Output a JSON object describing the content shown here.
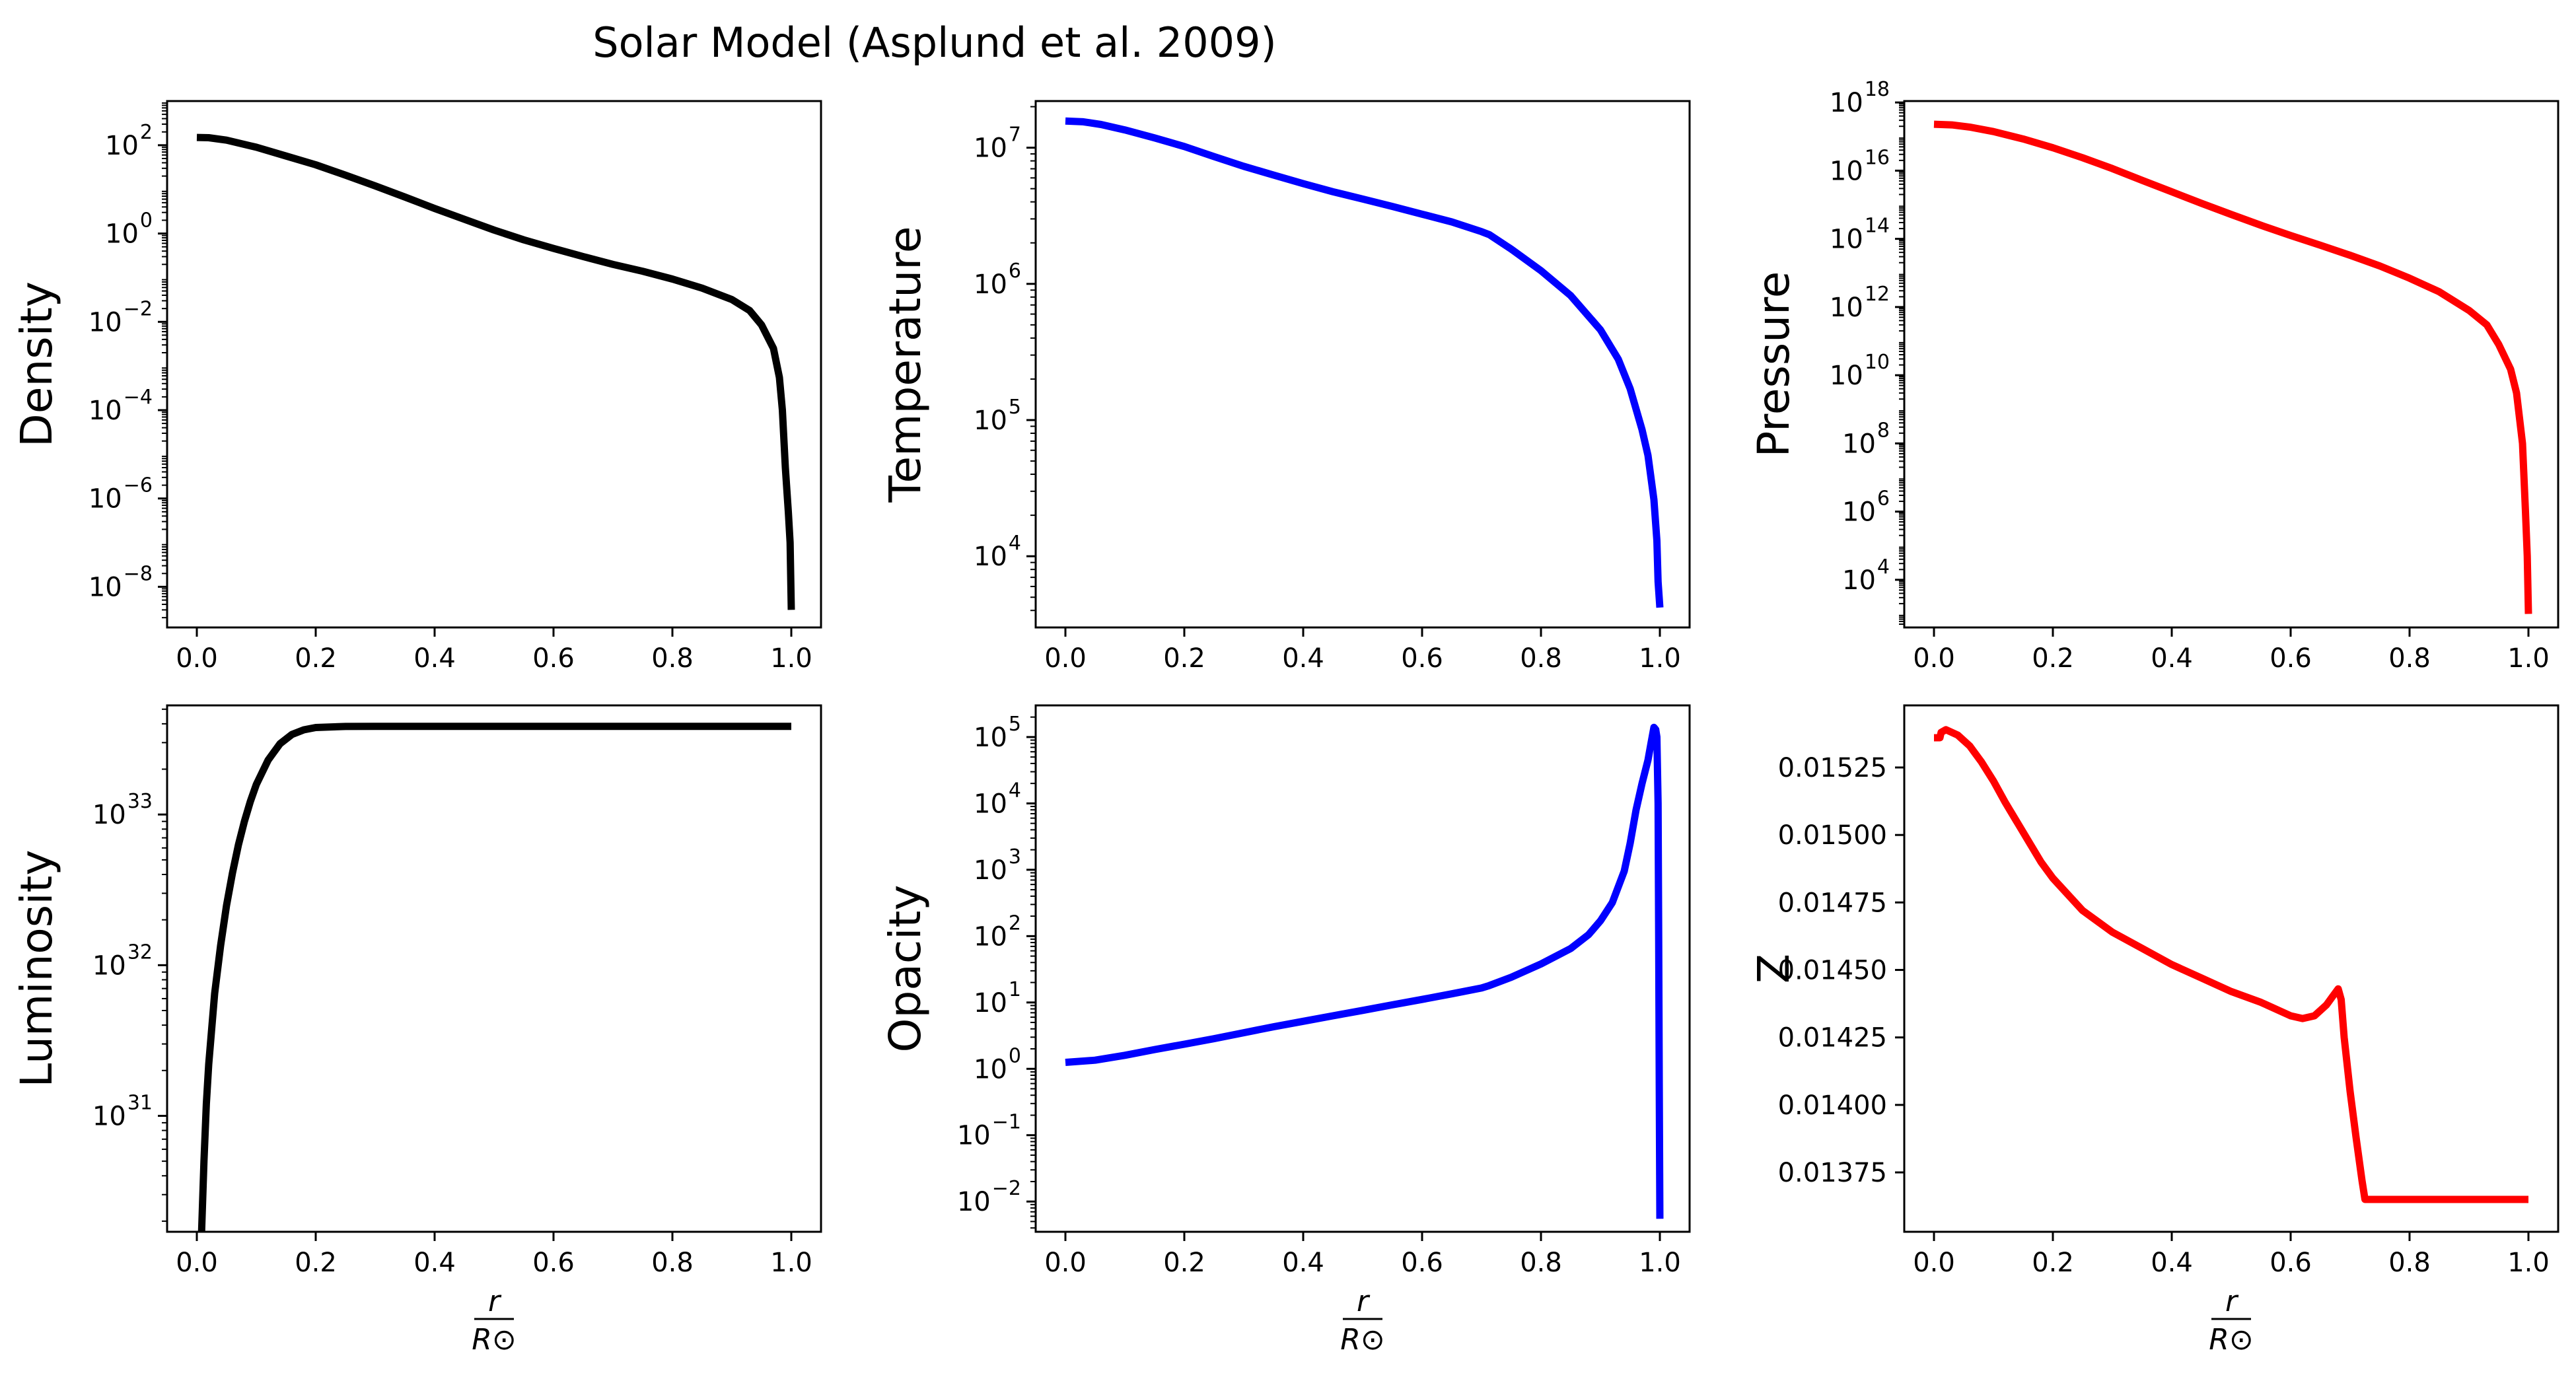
{
  "figure": {
    "title": "Solar Model (Asplund et al. 2009)",
    "xlabel_numerator": "r",
    "xlabel_denominator": "R⊙"
  },
  "chart_data": [
    {
      "id": "density",
      "type": "line",
      "ylabel": "Density",
      "color": "#000000",
      "yscale": "log",
      "xlim": [
        -0.05,
        1.05
      ],
      "ylim": [
        1.2e-09,
        1000
      ],
      "xticks": [
        "0.0",
        "0.2",
        "0.4",
        "0.6",
        "0.8",
        "1.0"
      ],
      "yticks": [
        {
          "base": "10",
          "exp": "2",
          "value": 100
        },
        {
          "base": "10",
          "exp": "0",
          "value": 1
        },
        {
          "base": "10",
          "exp": "−2",
          "value": 0.01
        },
        {
          "base": "10",
          "exp": "−4",
          "value": 0.0001
        },
        {
          "base": "10",
          "exp": "−6",
          "value": 1e-06
        },
        {
          "base": "10",
          "exp": "−8",
          "value": 1e-08
        }
      ],
      "x": [
        0.0,
        0.02,
        0.05,
        0.1,
        0.15,
        0.2,
        0.25,
        0.3,
        0.35,
        0.4,
        0.45,
        0.5,
        0.55,
        0.6,
        0.65,
        0.7,
        0.75,
        0.8,
        0.85,
        0.9,
        0.93,
        0.95,
        0.97,
        0.98,
        0.985,
        0.99,
        0.995,
        0.998,
        1.0
      ],
      "y": [
        150,
        148,
        130,
        90,
        57,
        36,
        21,
        12,
        6.7,
        3.7,
        2.1,
        1.2,
        0.72,
        0.46,
        0.3,
        0.2,
        0.14,
        0.093,
        0.058,
        0.032,
        0.018,
        0.0085,
        0.0025,
        0.00055,
        0.0001,
        5e-06,
        5e-07,
        1e-07,
        3e-09
      ]
    },
    {
      "id": "temperature",
      "type": "line",
      "ylabel": "Temperature",
      "color": "#0000ff",
      "yscale": "log",
      "xlim": [
        -0.05,
        1.05
      ],
      "ylim": [
        3000,
        22000000.0
      ],
      "xticks": [
        "0.0",
        "0.2",
        "0.4",
        "0.6",
        "0.8",
        "1.0"
      ],
      "yticks": [
        {
          "base": "10",
          "exp": "7",
          "value": 10000000.0
        },
        {
          "base": "10",
          "exp": "6",
          "value": 1000000.0
        },
        {
          "base": "10",
          "exp": "5",
          "value": 100000.0
        },
        {
          "base": "10",
          "exp": "4",
          "value": 10000.0
        }
      ],
      "x": [
        0.0,
        0.03,
        0.06,
        0.1,
        0.15,
        0.2,
        0.25,
        0.3,
        0.35,
        0.4,
        0.45,
        0.5,
        0.55,
        0.6,
        0.65,
        0.7,
        0.713,
        0.75,
        0.8,
        0.85,
        0.9,
        0.93,
        0.95,
        0.97,
        0.98,
        0.99,
        0.995,
        0.997,
        1.0
      ],
      "y": [
        15700000.0,
        15500000.0,
        14800000.0,
        13500000.0,
        11800000.0,
        10200000.0,
        8600000.0,
        7300000.0,
        6300000.0,
        5450000.0,
        4750000.0,
        4200000.0,
        3700000.0,
        3250000.0,
        2850000.0,
        2420000.0,
        2300000.0,
        1800000.0,
        1250000.0,
        820000.0,
        460000.0,
        280000.0,
        170000.0,
        85000.0,
        55000.0,
        26000.0,
        13000.0,
        6500,
        4200
      ]
    },
    {
      "id": "pressure",
      "type": "line",
      "ylabel": "Pressure",
      "color": "#ff0000",
      "yscale": "log",
      "xlim": [
        -0.05,
        1.05
      ],
      "ylim": [
        400,
        1.1e+18
      ],
      "xticks": [
        "0.0",
        "0.2",
        "0.4",
        "0.6",
        "0.8",
        "1.0"
      ],
      "yticks": [
        {
          "base": "10",
          "exp": "18",
          "value": 1e+18
        },
        {
          "base": "10",
          "exp": "16",
          "value": 1e+16
        },
        {
          "base": "10",
          "exp": "14",
          "value": 100000000000000.0
        },
        {
          "base": "10",
          "exp": "12",
          "value": 1000000000000.0
        },
        {
          "base": "10",
          "exp": "10",
          "value": 10000000000.0
        },
        {
          "base": "10",
          "exp": "8",
          "value": 100000000.0
        },
        {
          "base": "10",
          "exp": "6",
          "value": 1000000.0
        },
        {
          "base": "10",
          "exp": "4",
          "value": 10000.0
        }
      ],
      "x": [
        0.0,
        0.03,
        0.06,
        0.1,
        0.15,
        0.2,
        0.25,
        0.3,
        0.35,
        0.4,
        0.45,
        0.5,
        0.55,
        0.6,
        0.65,
        0.7,
        0.75,
        0.8,
        0.85,
        0.9,
        0.93,
        0.95,
        0.97,
        0.98,
        0.99,
        0.995,
        0.998,
        1.0
      ],
      "y": [
        2.3e+17,
        2.2e+17,
        1.9e+17,
        1.4e+17,
        8.5e+16,
        4.7e+16,
        2.4e+16,
        1.15e+16,
        5200000000000000.0,
        2400000000000000.0,
        1100000000000000.0,
        520000000000000.0,
        250000000000000.0,
        125000000000000.0,
        65000000000000.0,
        33000000000000.0,
        16000000000000.0,
        7000000000000.0,
        2800000000000.0,
        800000000000.0,
        300000000000.0,
        80000000000.0,
        15000000000.0,
        3000000000.0,
        100000000.0,
        1000000.0,
        50000.0,
        1000
      ]
    },
    {
      "id": "luminosity",
      "type": "line",
      "ylabel": "Luminosity",
      "color": "#000000",
      "yscale": "log",
      "xlim": [
        -0.05,
        1.05
      ],
      "ylim": [
        1.7e+30,
        5.3e+33
      ],
      "xticks": [
        "0.0",
        "0.2",
        "0.4",
        "0.6",
        "0.8",
        "1.0"
      ],
      "yticks": [
        {
          "base": "10",
          "exp": "33",
          "value": 1e+33
        },
        {
          "base": "10",
          "exp": "32",
          "value": 1e+32
        },
        {
          "base": "10",
          "exp": "31",
          "value": 1e+31
        }
      ],
      "x": [
        0.008,
        0.012,
        0.016,
        0.02,
        0.03,
        0.04,
        0.05,
        0.06,
        0.07,
        0.08,
        0.09,
        0.1,
        0.12,
        0.14,
        0.16,
        0.18,
        0.2,
        0.25,
        0.3,
        0.4,
        0.6,
        0.8,
        1.0
      ],
      "y": [
        1.7e+30,
        5e+30,
        1.2e+31,
        2.2e+31,
        6.5e+31,
        1.35e+32,
        2.5e+32,
        4.1e+32,
        6.3e+32,
        9e+32,
        1.22e+33,
        1.58e+33,
        2.3e+33,
        2.95e+33,
        3.4e+33,
        3.65e+33,
        3.78e+33,
        3.84e+33,
        3.846e+33,
        3.846e+33,
        3.846e+33,
        3.846e+33,
        3.846e+33
      ]
    },
    {
      "id": "opacity",
      "type": "line",
      "ylabel": "Opacity",
      "color": "#0000ff",
      "yscale": "log",
      "xlim": [
        -0.05,
        1.05
      ],
      "ylim": [
        0.0035,
        300000.0
      ],
      "xticks": [
        "0.0",
        "0.2",
        "0.4",
        "0.6",
        "0.8",
        "1.0"
      ],
      "yticks": [
        {
          "base": "10",
          "exp": "5",
          "value": 100000.0
        },
        {
          "base": "10",
          "exp": "4",
          "value": 10000.0
        },
        {
          "base": "10",
          "exp": "3",
          "value": 1000.0
        },
        {
          "base": "10",
          "exp": "2",
          "value": 100
        },
        {
          "base": "10",
          "exp": "1",
          "value": 10
        },
        {
          "base": "10",
          "exp": "0",
          "value": 1
        },
        {
          "base": "10",
          "exp": "−1",
          "value": 0.1
        },
        {
          "base": "10",
          "exp": "−2",
          "value": 0.01
        }
      ],
      "x": [
        0.0,
        0.05,
        0.1,
        0.15,
        0.2,
        0.25,
        0.3,
        0.35,
        0.4,
        0.45,
        0.5,
        0.55,
        0.6,
        0.65,
        0.7,
        0.713,
        0.75,
        0.8,
        0.85,
        0.88,
        0.9,
        0.92,
        0.94,
        0.95,
        0.96,
        0.97,
        0.98,
        0.985,
        0.99,
        0.993,
        0.995,
        0.997,
        0.998,
        0.999,
        1.0
      ],
      "y": [
        1.25,
        1.35,
        1.6,
        1.95,
        2.35,
        2.85,
        3.5,
        4.3,
        5.2,
        6.3,
        7.6,
        9.2,
        11.1,
        13.5,
        16.5,
        18,
        24,
        38,
        65,
        105,
        170,
        320,
        950,
        2500,
        8000,
        20000.0,
        45000.0,
        80000.0,
        140000.0,
        130000.0,
        100000.0,
        10000.0,
        100,
        0.5,
        0.0055
      ]
    },
    {
      "id": "metallicity",
      "type": "line",
      "ylabel": "Z",
      "color": "#ff0000",
      "yscale": "linear",
      "xlim": [
        -0.05,
        1.05
      ],
      "ylim": [
        0.01353,
        0.01548
      ],
      "xticks": [
        "0.0",
        "0.2",
        "0.4",
        "0.6",
        "0.8",
        "1.0"
      ],
      "yticks": [
        {
          "label": "0.01525",
          "value": 0.01525
        },
        {
          "label": "0.01500",
          "value": 0.015
        },
        {
          "label": "0.01475",
          "value": 0.01475
        },
        {
          "label": "0.01450",
          "value": 0.0145
        },
        {
          "label": "0.01425",
          "value": 0.01425
        },
        {
          "label": "0.01400",
          "value": 0.014
        },
        {
          "label": "0.01375",
          "value": 0.01375
        }
      ],
      "x": [
        0.0,
        0.01,
        0.012,
        0.02,
        0.04,
        0.06,
        0.08,
        0.1,
        0.12,
        0.15,
        0.18,
        0.2,
        0.25,
        0.3,
        0.35,
        0.4,
        0.45,
        0.5,
        0.55,
        0.6,
        0.62,
        0.64,
        0.66,
        0.67,
        0.68,
        0.685,
        0.69,
        0.7,
        0.71,
        0.72,
        0.725,
        0.75,
        0.8,
        0.9,
        1.0
      ],
      "y": [
        0.01536,
        0.01536,
        0.01538,
        0.01539,
        0.01537,
        0.01533,
        0.01527,
        0.0152,
        0.01512,
        0.01501,
        0.0149,
        0.01484,
        0.01472,
        0.01464,
        0.01458,
        0.01452,
        0.01447,
        0.01442,
        0.01438,
        0.01433,
        0.01432,
        0.01433,
        0.01437,
        0.0144,
        0.01443,
        0.01439,
        0.01425,
        0.01405,
        0.01388,
        0.01372,
        0.01365,
        0.01365,
        0.01365,
        0.01365,
        0.01365
      ]
    }
  ]
}
